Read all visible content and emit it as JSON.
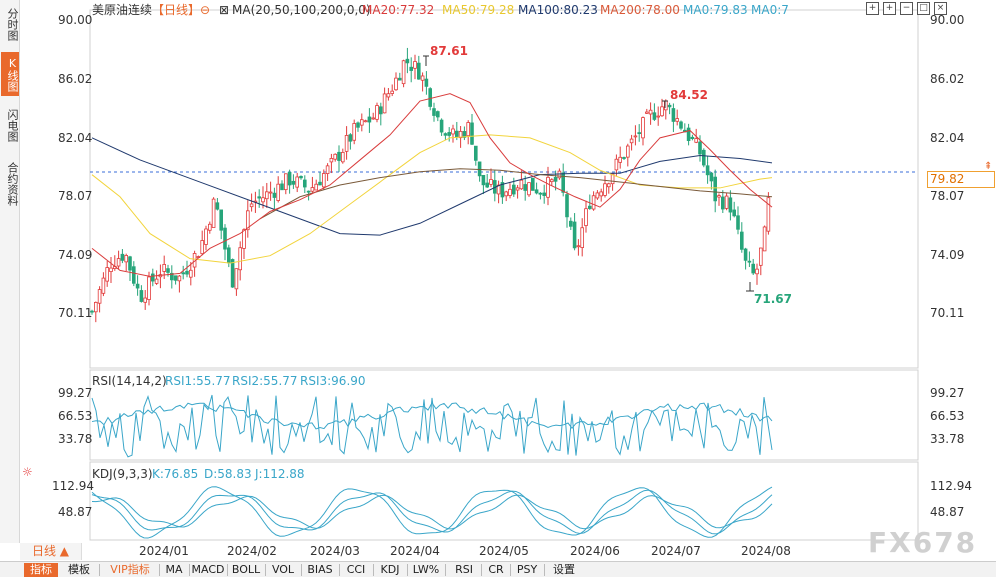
{
  "sidebar": {
    "tabs": [
      {
        "label": "分时图",
        "active": false
      },
      {
        "label": "K线图",
        "active": true
      },
      {
        "label": "闪电图",
        "active": false
      },
      {
        "label": "合约资料",
        "active": false
      }
    ]
  },
  "header": {
    "instrument": "美原油连续",
    "period_tag": "【日线】",
    "ma_params": "MA(20,50,100,200,0,0)",
    "ma20": "MA20:77.32",
    "ma50": "MA50:79.28",
    "ma100": "MA100:80.23",
    "ma200": "MA200:78.00",
    "ma0a": "MA0:79.83",
    "ma0b": "MA0:7"
  },
  "colors": {
    "up": "#e23a3a",
    "down": "#27a57a",
    "ma20": "#d93c3c",
    "ma50": "#f2d43c",
    "ma100": "#203a6e",
    "ma200": "#7a5a3a",
    "rsi1": "#3aa6c9",
    "rsi2": "#3aa6c9",
    "accent": "#e9692c"
  },
  "price_axis": {
    "ticks": [
      "90.00",
      "86.02",
      "82.04",
      "78.07",
      "74.09",
      "70.11"
    ],
    "current_price": "79.82"
  },
  "annotations": {
    "high1": "87.61",
    "high2": "84.52",
    "low1": "71.67"
  },
  "rsi": {
    "title": "RSI(14,14,2)",
    "rsi1": "RSI1:55.77",
    "rsi2": "RSI2:55.77",
    "rsi3": "RSI3:96.90",
    "ticks": [
      "99.27",
      "66.53",
      "33.78"
    ]
  },
  "kdj": {
    "title": "KDJ(9,3,3)",
    "k": "K:76.85",
    "d": "D:58.83",
    "j": "J:112.88",
    "ticks": [
      "112.94",
      "48.87"
    ]
  },
  "time_axis": [
    "2024/01",
    "2024/02",
    "2024/03",
    "2024/04",
    "2024/05",
    "2024/06",
    "2024/07",
    "2024/08"
  ],
  "period_selector": "日线 ▲",
  "bottom_tabs": [
    "指标",
    "模板",
    "VIP指标",
    "MA",
    "MACD",
    "BOLL",
    "VOL",
    "BIAS",
    "CCI",
    "KDJ",
    "LW%",
    "RSI",
    "CR",
    "PSY",
    "设置"
  ],
  "toolbar_icons": [
    "crosshair-icon",
    "zoom-in-icon",
    "zoom-out-icon",
    "fullscreen-icon",
    "close-icon"
  ],
  "watermark": "FX678"
}
